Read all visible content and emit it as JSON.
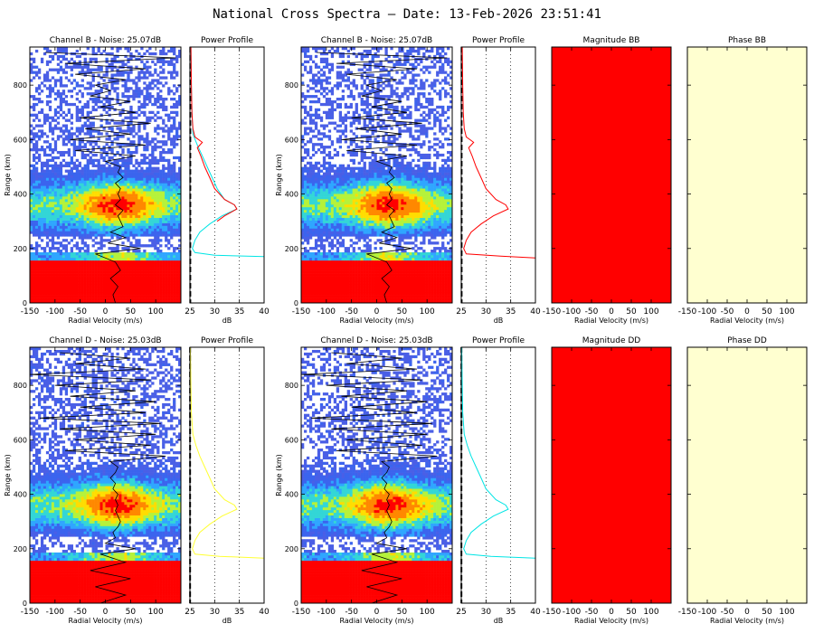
{
  "title": "National Cross Spectra – Date: 13-Feb-2026 23:51:41",
  "colors": {
    "spec_bg": "#ffffff",
    "noise_dot": "#4a5fe6",
    "hot": "#ff0000",
    "profile_red": "#ff0000",
    "profile_cyan": "#00e5e5",
    "profile_yellow": "#ffff33",
    "magnitude_fill": "#ff0000",
    "phase_fill": "#ffffd0"
  },
  "chart_data": [
    {
      "type": "heatmap",
      "title": "Channel B - Noise: 25.07dB",
      "xlabel": "Radial Velocity (m/s)",
      "ylabel": "Range (km)",
      "xlim": [
        -150,
        150
      ],
      "ylim": [
        0,
        940
      ],
      "xticks": [
        -150,
        -100,
        -50,
        0,
        50,
        100
      ],
      "yticks": [
        0,
        200,
        400,
        600,
        800
      ],
      "velocity_trace": {
        "range_km": [
          0,
          30,
          60,
          90,
          120,
          150,
          180,
          200,
          220,
          240,
          260,
          280,
          300,
          320,
          340,
          360,
          380,
          400,
          420,
          440,
          460,
          480,
          500,
          520,
          540,
          560,
          580,
          600,
          620,
          640,
          660,
          680,
          700,
          720,
          740,
          760,
          780,
          800,
          820,
          840,
          860,
          880,
          900,
          920
        ],
        "velocity_ms": [
          20,
          15,
          25,
          10,
          30,
          20,
          -20,
          70,
          5,
          40,
          10,
          35,
          30,
          25,
          35,
          20,
          30,
          25,
          30,
          20,
          35,
          25,
          30,
          0,
          60,
          -60,
          80,
          -70,
          50,
          -40,
          90,
          -50,
          60,
          -10,
          50,
          -30,
          10,
          -20,
          40,
          -60,
          80,
          -80,
          140,
          -120
        ]
      }
    },
    {
      "type": "line",
      "title": "Power Profile",
      "xlabel": "dB",
      "xlim": [
        25,
        40
      ],
      "ylim": [
        0,
        940
      ],
      "xticks": [
        25,
        30,
        35,
        40
      ],
      "noise_level_db": 25.07,
      "series": [
        {
          "color": "#00e5e5",
          "range_km": [
            170,
            175,
            185,
            200,
            230,
            260,
            290,
            320,
            345,
            360,
            380,
            420,
            460,
            500,
            540,
            580,
            620,
            700,
            800,
            940
          ],
          "db": [
            40,
            30,
            26,
            25.5,
            26,
            27,
            29,
            31.5,
            34.5,
            34,
            32,
            30.5,
            29.5,
            28.5,
            27.5,
            26.5,
            25.6,
            25.4,
            25.3,
            25.2
          ]
        },
        {
          "color": "#ff0000",
          "range_km": [
            300,
            320,
            345,
            360,
            380,
            420,
            460,
            500,
            540,
            570,
            590,
            610,
            640,
            700,
            800,
            940
          ],
          "db": [
            30.5,
            32,
            34.5,
            34,
            32,
            30,
            29,
            28,
            27.2,
            26.5,
            27.5,
            26,
            25.6,
            25.4,
            25.3,
            25.2
          ]
        }
      ]
    },
    {
      "type": "heatmap",
      "title": "Channel B - Noise: 25.07dB",
      "xlabel": "Radial Velocity (m/s)",
      "ylabel": "Range (km)",
      "xlim": [
        -150,
        150
      ],
      "ylim": [
        0,
        940
      ],
      "xticks": [
        -150,
        -100,
        -50,
        0,
        50,
        100
      ],
      "yticks": [
        0,
        200,
        400,
        600,
        800
      ],
      "velocity_trace": {
        "range_km": [
          0,
          30,
          60,
          90,
          120,
          150,
          180,
          200,
          220,
          240,
          260,
          280,
          300,
          320,
          340,
          360,
          380,
          400,
          420,
          440,
          460,
          480,
          500,
          520,
          540,
          560,
          580,
          600,
          620,
          640,
          660,
          680,
          700,
          720,
          740,
          760,
          780,
          800,
          820,
          840,
          860,
          880,
          900,
          920
        ],
        "velocity_ms": [
          20,
          15,
          25,
          10,
          30,
          20,
          -20,
          70,
          5,
          40,
          10,
          35,
          30,
          25,
          35,
          20,
          30,
          25,
          30,
          20,
          35,
          25,
          30,
          0,
          60,
          -60,
          80,
          -70,
          50,
          -40,
          90,
          -50,
          60,
          -10,
          50,
          -30,
          10,
          -20,
          40,
          -60,
          80,
          -80,
          140,
          -120
        ]
      }
    },
    {
      "type": "line",
      "title": "Power Profile",
      "xlabel": "dB",
      "xlim": [
        25,
        40
      ],
      "ylim": [
        0,
        940
      ],
      "xticks": [
        25,
        30,
        35,
        40
      ],
      "noise_level_db": 25.07,
      "series": [
        {
          "color": "#ff0000",
          "range_km": [
            165,
            172,
            180,
            200,
            230,
            260,
            290,
            320,
            345,
            360,
            380,
            420,
            460,
            500,
            540,
            570,
            590,
            610,
            640,
            700,
            800,
            940
          ],
          "db": [
            40,
            33,
            26,
            25.5,
            26,
            27,
            29,
            31.5,
            34.5,
            34,
            32,
            30,
            29,
            28,
            27.2,
            26.5,
            27.5,
            26,
            25.6,
            25.4,
            25.3,
            25.2
          ]
        }
      ]
    },
    {
      "type": "heatmap",
      "title": "Magnitude BB",
      "xlabel": "Radial Velocity (m/s)",
      "xlim": [
        -150,
        150
      ],
      "ylim": [
        0,
        940
      ],
      "xticks": [
        -150,
        -100,
        -50,
        0,
        50,
        100
      ],
      "yticks": [
        0,
        200,
        400,
        600,
        800
      ],
      "fill": "uniform red"
    },
    {
      "type": "heatmap",
      "title": "Phase BB",
      "xlabel": "Radial Velocity (m/s)",
      "xlim": [
        -150,
        150
      ],
      "ylim": [
        0,
        940
      ],
      "xticks": [
        -150,
        -100,
        -50,
        0,
        50,
        100
      ],
      "yticks": [
        0,
        200,
        400,
        600,
        800
      ],
      "fill": "uniform pale yellow"
    },
    {
      "type": "heatmap",
      "title": "Channel D - Noise: 25.03dB",
      "xlabel": "Radial Velocity (m/s)",
      "ylabel": "Range (km)",
      "xlim": [
        -150,
        150
      ],
      "ylim": [
        0,
        940
      ],
      "xticks": [
        -150,
        -100,
        -50,
        0,
        50,
        100
      ],
      "yticks": [
        0,
        200,
        400,
        600,
        800
      ],
      "velocity_trace": {
        "range_km": [
          0,
          30,
          60,
          90,
          120,
          150,
          180,
          200,
          220,
          240,
          260,
          280,
          300,
          320,
          340,
          360,
          380,
          400,
          420,
          440,
          460,
          480,
          500,
          520,
          540,
          560,
          580,
          600,
          620,
          640,
          660,
          680,
          700,
          720,
          740,
          760,
          780,
          800,
          820,
          840,
          860,
          880,
          900,
          920
        ],
        "velocity_ms": [
          -10,
          40,
          -20,
          50,
          -30,
          40,
          -10,
          60,
          0,
          20,
          15,
          25,
          30,
          25,
          20,
          25,
          20,
          25,
          15,
          20,
          10,
          20,
          25,
          10,
          120,
          -80,
          90,
          -60,
          100,
          -90,
          110,
          -130,
          80,
          -50,
          100,
          -70,
          60,
          -100,
          90,
          -150,
          80,
          -60,
          50,
          -90
        ]
      }
    },
    {
      "type": "line",
      "title": "Power Profile",
      "xlabel": "dB",
      "xlim": [
        25,
        40
      ],
      "ylim": [
        0,
        940
      ],
      "xticks": [
        25,
        30,
        35,
        40
      ],
      "noise_level_db": 25.03,
      "series": [
        {
          "color": "#ffff33",
          "range_km": [
            165,
            172,
            180,
            200,
            230,
            260,
            290,
            320,
            345,
            360,
            380,
            420,
            460,
            500,
            540,
            580,
            620,
            700,
            800,
            940
          ],
          "db": [
            40,
            31,
            26,
            25.5,
            26,
            27,
            29,
            31.5,
            34.5,
            34,
            32,
            30,
            29,
            28,
            27,
            26.2,
            25.6,
            25.3,
            25.2,
            25.1
          ]
        }
      ]
    },
    {
      "type": "heatmap",
      "title": "Channel D - Noise: 25.03dB",
      "xlabel": "Radial Velocity (m/s)",
      "ylabel": "Range (km)",
      "xlim": [
        -150,
        150
      ],
      "ylim": [
        0,
        940
      ],
      "xticks": [
        -150,
        -100,
        -50,
        0,
        50,
        100
      ],
      "yticks": [
        0,
        200,
        400,
        600,
        800
      ],
      "velocity_trace": {
        "range_km": [
          0,
          30,
          60,
          90,
          120,
          150,
          180,
          200,
          220,
          240,
          260,
          280,
          300,
          320,
          340,
          360,
          380,
          400,
          420,
          440,
          460,
          480,
          500,
          520,
          540,
          560,
          580,
          600,
          620,
          640,
          660,
          680,
          700,
          720,
          740,
          760,
          780,
          800,
          820,
          840,
          860,
          880,
          900,
          920
        ],
        "velocity_ms": [
          -10,
          40,
          -20,
          50,
          -30,
          40,
          -10,
          60,
          0,
          20,
          15,
          25,
          30,
          25,
          20,
          25,
          20,
          25,
          15,
          20,
          10,
          20,
          25,
          10,
          120,
          -80,
          90,
          -60,
          100,
          -90,
          110,
          -130,
          80,
          -50,
          100,
          -70,
          60,
          -100,
          90,
          -150,
          80,
          -60,
          50,
          -90
        ]
      }
    },
    {
      "type": "line",
      "title": "Power Profile",
      "xlabel": "dB",
      "xlim": [
        25,
        40
      ],
      "ylim": [
        0,
        940
      ],
      "xticks": [
        25,
        30,
        35,
        40
      ],
      "noise_level_db": 25.03,
      "series": [
        {
          "color": "#00e5e5",
          "range_km": [
            165,
            172,
            180,
            200,
            230,
            260,
            290,
            320,
            345,
            360,
            380,
            420,
            460,
            500,
            540,
            580,
            620,
            700,
            800,
            940
          ],
          "db": [
            40,
            31,
            26,
            25.5,
            26,
            27,
            29,
            31.5,
            34.5,
            34,
            32,
            30,
            29,
            28,
            27,
            26.2,
            25.6,
            25.3,
            25.2,
            25.1
          ]
        }
      ]
    },
    {
      "type": "heatmap",
      "title": "Magnitude DD",
      "xlabel": "Radial Velocity (m/s)",
      "xlim": [
        -150,
        150
      ],
      "ylim": [
        0,
        940
      ],
      "xticks": [
        -150,
        -100,
        -50,
        0,
        50,
        100
      ],
      "yticks": [
        0,
        200,
        400,
        600,
        800
      ],
      "fill": "uniform red"
    },
    {
      "type": "heatmap",
      "title": "Phase DD",
      "xlabel": "Radial Velocity (m/s)",
      "xlim": [
        -150,
        150
      ],
      "ylim": [
        0,
        940
      ],
      "xticks": [
        -150,
        -100,
        -50,
        0,
        50,
        100
      ],
      "yticks": [
        0,
        200,
        400,
        600,
        800
      ],
      "fill": "uniform pale yellow"
    }
  ]
}
